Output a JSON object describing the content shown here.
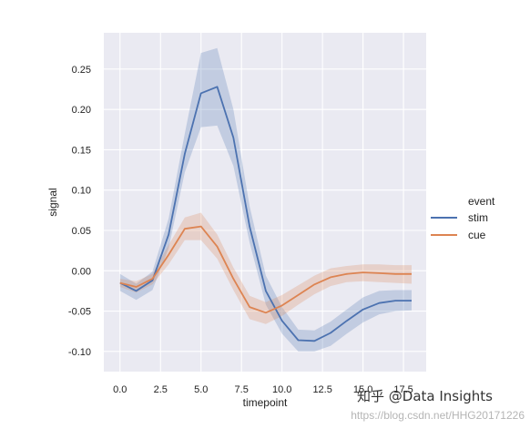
{
  "chart_data": {
    "type": "line",
    "x": [
      0,
      1,
      2,
      3,
      4,
      5,
      6,
      7,
      8,
      9,
      10,
      11,
      12,
      13,
      14,
      15,
      16,
      17,
      18
    ],
    "series": [
      {
        "name": "stim",
        "color": "#4c72b0",
        "values": [
          -0.015,
          -0.025,
          -0.012,
          0.045,
          0.145,
          0.22,
          0.228,
          0.165,
          0.055,
          -0.025,
          -0.062,
          -0.086,
          -0.087,
          -0.077,
          -0.062,
          -0.048,
          -0.04,
          -0.037,
          -0.037
        ],
        "ci_low": [
          -0.025,
          -0.036,
          -0.024,
          0.028,
          0.122,
          0.178,
          0.18,
          0.13,
          0.035,
          -0.042,
          -0.078,
          -0.1,
          -0.1,
          -0.093,
          -0.078,
          -0.064,
          -0.054,
          -0.05,
          -0.049
        ],
        "ci_high": [
          -0.004,
          -0.016,
          -0.001,
          0.065,
          0.17,
          0.27,
          0.276,
          0.2,
          0.08,
          -0.006,
          -0.045,
          -0.073,
          -0.074,
          -0.063,
          -0.048,
          -0.033,
          -0.025,
          -0.024,
          -0.024
        ]
      },
      {
        "name": "cue",
        "color": "#dd8452",
        "values": [
          -0.015,
          -0.02,
          -0.01,
          0.02,
          0.052,
          0.055,
          0.03,
          -0.01,
          -0.045,
          -0.052,
          -0.043,
          -0.03,
          -0.017,
          -0.008,
          -0.004,
          -0.002,
          -0.003,
          -0.004,
          -0.004
        ],
        "ci_low": [
          -0.02,
          -0.027,
          -0.017,
          0.008,
          0.038,
          0.038,
          0.015,
          -0.024,
          -0.06,
          -0.066,
          -0.056,
          -0.042,
          -0.029,
          -0.019,
          -0.014,
          -0.013,
          -0.014,
          -0.015,
          -0.016
        ],
        "ci_high": [
          -0.01,
          -0.013,
          -0.004,
          0.032,
          0.066,
          0.072,
          0.045,
          0.004,
          -0.031,
          -0.039,
          -0.03,
          -0.018,
          -0.006,
          0.003,
          0.006,
          0.008,
          0.008,
          0.007,
          0.007
        ]
      }
    ],
    "xlabel": "timepoint",
    "ylabel": "signal",
    "xlim": [
      -1,
      18.9
    ],
    "ylim": [
      -0.125,
      0.295
    ],
    "xticks": [
      0.0,
      2.5,
      5.0,
      7.5,
      10.0,
      12.5,
      15.0,
      17.5
    ],
    "xtick_labels": [
      "0.0",
      "2.5",
      "5.0",
      "7.5",
      "10.0",
      "12.5",
      "15.0",
      "17.5"
    ],
    "yticks": [
      -0.1,
      -0.05,
      0.0,
      0.05,
      0.1,
      0.15,
      0.2,
      0.25
    ],
    "ytick_labels": [
      "-0.10",
      "-0.05",
      "0.00",
      "0.05",
      "0.10",
      "0.15",
      "0.20",
      "0.25"
    ],
    "legend": {
      "title": "event",
      "placement": "right"
    },
    "grid": true,
    "background_color": "#eaeaf2"
  },
  "watermark": {
    "brand": "知乎 @Data Insights",
    "url": "https://blog.csdn.net/HHG20171226"
  }
}
